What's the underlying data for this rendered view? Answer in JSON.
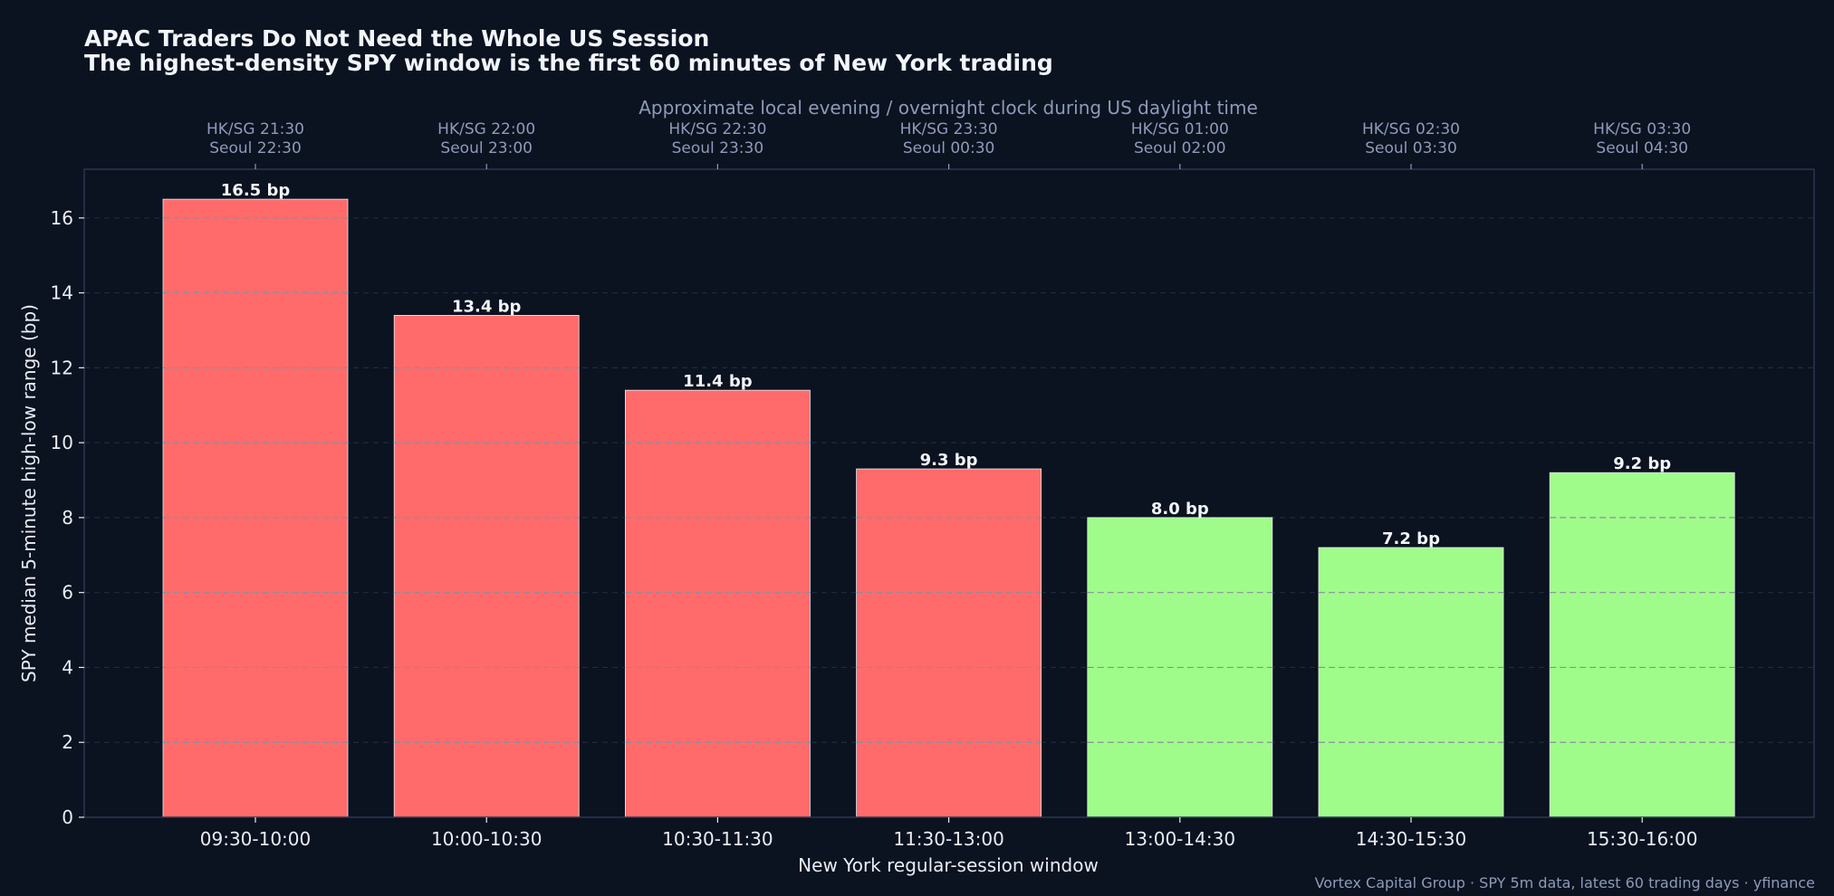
{
  "colors": {
    "background": "#0b1220",
    "frame": "#2a3850",
    "grid": "#8a8f9e",
    "highlight_bar": "#ff6b6b",
    "normal_bar": "#a0fc8a",
    "text": "#e8edf5",
    "muted_text": "#8e9bb8"
  },
  "chart_data": {
    "type": "bar",
    "title": "APAC Traders Do Not Need the Whole US Session",
    "subtitle": "The highest-density SPY window is the first 60 minutes of New York trading",
    "xlabel": "New York regular-session window",
    "ylabel": "SPY median 5-minute high-low range (bp)",
    "top_axis_label": "Approximate local evening / overnight clock during US daylight time",
    "categories": [
      "09:30-10:00",
      "10:00-10:30",
      "10:30-11:30",
      "11:30-13:00",
      "13:00-14:30",
      "14:30-15:30",
      "15:30-16:00"
    ],
    "values": [
      16.5,
      13.4,
      11.4,
      9.3,
      8.0,
      7.2,
      9.2
    ],
    "value_labels": [
      "16.5 bp",
      "13.4 bp",
      "11.4 bp",
      "9.3 bp",
      "8.0 bp",
      "7.2 bp",
      "9.2 bp"
    ],
    "highlighted": [
      true,
      true,
      true,
      true,
      false,
      false,
      false
    ],
    "top_tick_labels": [
      [
        "HK/SG 21:30",
        "Seoul 22:30"
      ],
      [
        "HK/SG 22:00",
        "Seoul 23:00"
      ],
      [
        "HK/SG 22:30",
        "Seoul 23:30"
      ],
      [
        "HK/SG 23:30",
        "Seoul 00:30"
      ],
      [
        "HK/SG 01:00",
        "Seoul 02:00"
      ],
      [
        "HK/SG 02:30",
        "Seoul 03:30"
      ],
      [
        "HK/SG 03:30",
        "Seoul 04:30"
      ]
    ],
    "ylim": [
      0,
      17.3
    ],
    "yticks": [
      0,
      2,
      4,
      6,
      8,
      10,
      12,
      14,
      16
    ],
    "grid": true,
    "footnote": "Vortex Capital Group · SPY 5m data, latest 60 trading days · yfinance"
  }
}
